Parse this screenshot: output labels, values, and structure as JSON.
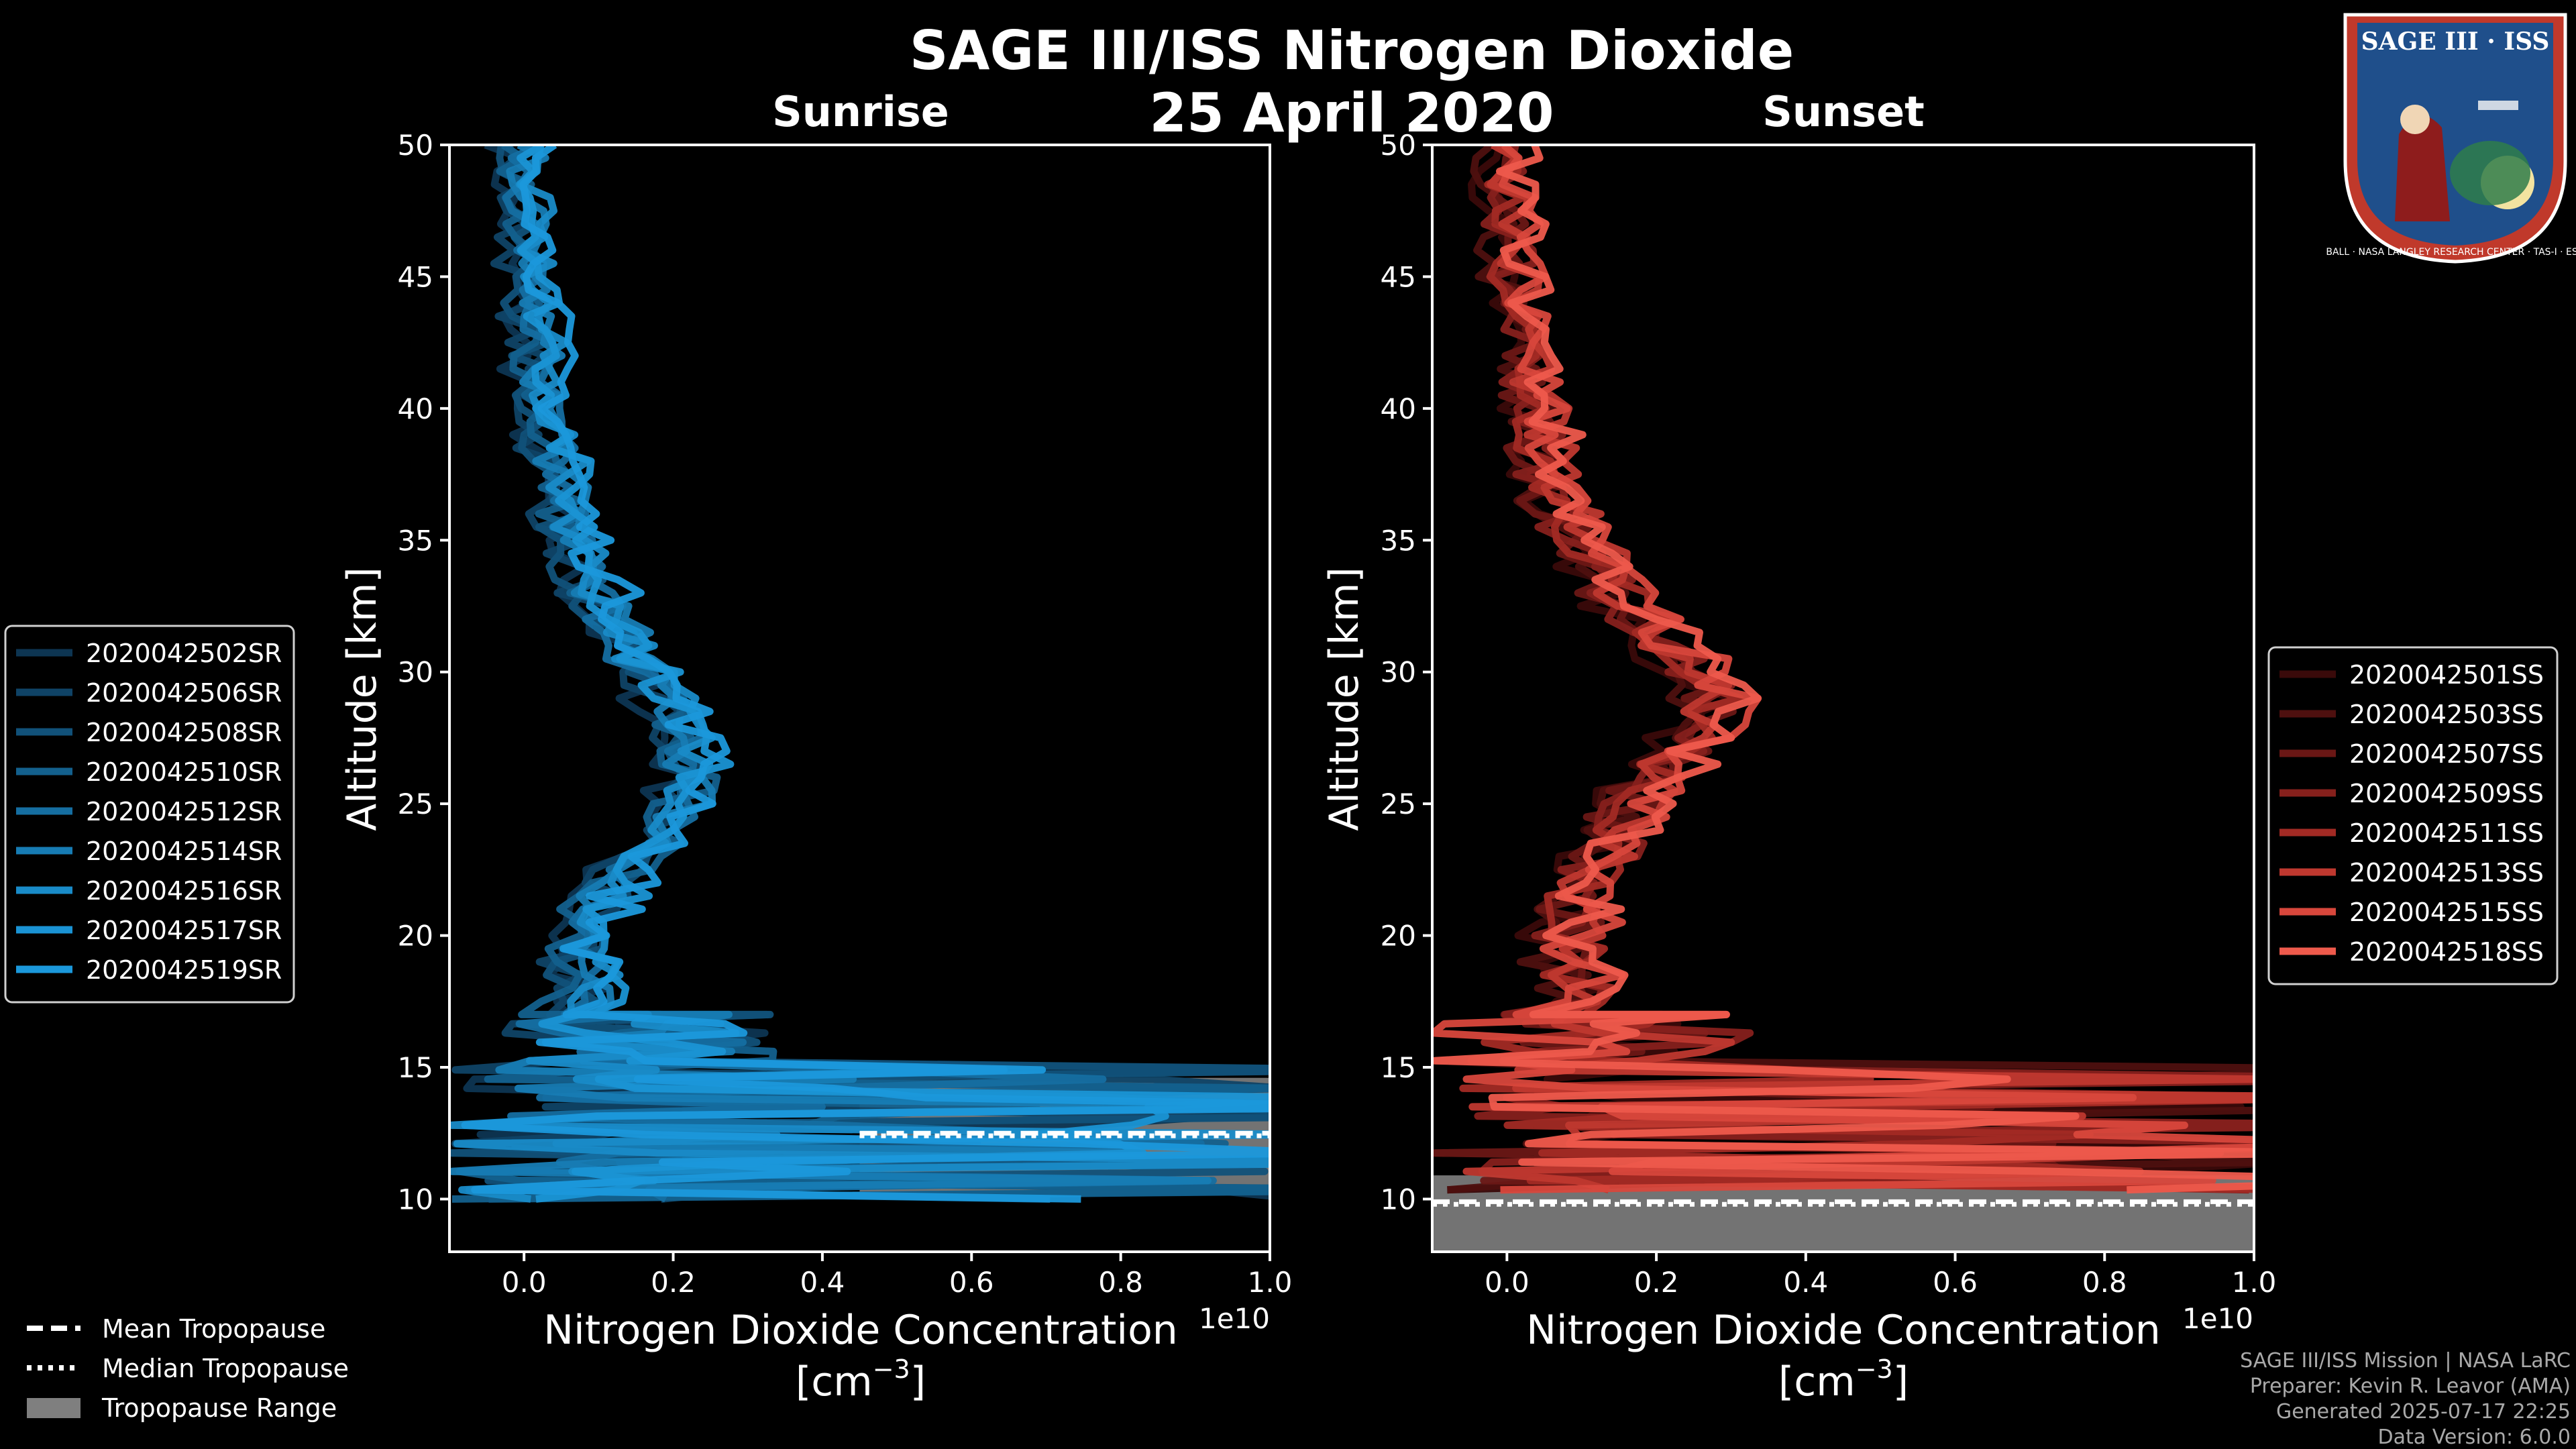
{
  "title": "SAGE III/ISS Nitrogen Dioxide",
  "date": "25 April 2020",
  "credits": [
    "SAGE III/ISS Mission | NASA LaRC",
    "Preparer: Kevin R. Leavor (AMA)",
    "Generated 2025-07-17 22:25",
    "Data Version: 6.0.0"
  ],
  "logo": {
    "header": "SAGE III · ISS",
    "ring_text": "BALL · NASA LANGLEY RESEARCH CENTER · TAS-I · ESA",
    "colors": {
      "ring": "#c0392b",
      "inner": "#1f4f8b",
      "text": "#ffffff"
    }
  },
  "tropopause_legend": [
    {
      "label": "Mean Tropopause",
      "style": "dashed"
    },
    {
      "label": "Median Tropopause",
      "style": "dotted"
    },
    {
      "label": "Tropopause Range",
      "style": "patch"
    }
  ],
  "colors": {
    "sunrise": [
      "#0d3552",
      "#0f4366",
      "#115179",
      "#13608d",
      "#156ea1",
      "#177cb4",
      "#198bc8",
      "#1a93d4",
      "#1b98db"
    ],
    "sunset": [
      "#3a0a0a",
      "#4e100f",
      "#6a1715",
      "#86201c",
      "#a22a24",
      "#bf382f",
      "#d8473c",
      "#ee5a4c"
    ],
    "tropopause_range": "#7f7f7f",
    "axes": "#ffffff"
  },
  "chart_data": [
    {
      "type": "line",
      "panel": "Sunrise",
      "title": "Sunrise",
      "xlabel_line1": "Nitrogen Dioxide Concentration",
      "xlabel_line2": "[cm",
      "xlabel_sup": "−3",
      "xlabel_close": "]",
      "ylabel": "Altitude [km]",
      "offset_label": "1e10",
      "xlim": [
        -0.1,
        1.0
      ],
      "ylim": [
        8,
        50
      ],
      "xticks": [
        "0.0",
        "0.2",
        "0.4",
        "0.6",
        "0.8",
        "1.0"
      ],
      "yticks": [
        "10",
        "15",
        "20",
        "25",
        "30",
        "35",
        "40",
        "45",
        "50"
      ],
      "series": [
        "2020042502SR",
        "2020042506SR",
        "2020042508SR",
        "2020042510SR",
        "2020042512SR",
        "2020042514SR",
        "2020042516SR",
        "2020042517SR",
        "2020042519SR"
      ],
      "profile_altitudes": [
        50,
        47,
        45,
        42,
        40,
        37,
        35,
        33,
        31,
        30,
        29,
        28,
        27,
        26,
        25,
        24,
        23,
        22,
        21,
        20,
        19,
        18,
        17
      ],
      "profile_values": [
        0.0,
        0.005,
        0.01,
        0.02,
        0.03,
        0.05,
        0.07,
        0.1,
        0.14,
        0.16,
        0.19,
        0.21,
        0.22,
        0.23,
        0.22,
        0.2,
        0.16,
        0.12,
        0.1,
        0.08,
        0.07,
        0.1,
        0.05
      ],
      "tropopause": {
        "mean": 12.5,
        "median": 12.4,
        "min": 10.2,
        "max": 14.6
      }
    },
    {
      "type": "line",
      "panel": "Sunset",
      "title": "Sunset",
      "xlabel_line1": "Nitrogen Dioxide Concentration",
      "xlabel_line2": "[cm",
      "xlabel_sup": "−3",
      "xlabel_close": "]",
      "ylabel": "Altitude [km]",
      "offset_label": "1e10",
      "xlim": [
        -0.1,
        1.0
      ],
      "ylim": [
        8,
        50
      ],
      "xticks": [
        "0.0",
        "0.2",
        "0.4",
        "0.6",
        "0.8",
        "1.0"
      ],
      "yticks": [
        "10",
        "15",
        "20",
        "25",
        "30",
        "35",
        "40",
        "45",
        "50"
      ],
      "series": [
        "2020042501SS",
        "2020042503SS",
        "2020042507SS",
        "2020042509SS",
        "2020042511SS",
        "2020042513SS",
        "2020042515SS",
        "2020042518SS"
      ],
      "profile_altitudes": [
        50,
        47,
        45,
        42,
        40,
        37,
        35,
        33,
        31,
        30,
        29,
        28,
        27,
        26,
        25,
        24,
        23,
        22,
        21,
        20,
        19,
        18,
        17
      ],
      "profile_values": [
        0.0,
        0.005,
        0.01,
        0.03,
        0.04,
        0.06,
        0.1,
        0.15,
        0.22,
        0.26,
        0.28,
        0.27,
        0.24,
        0.2,
        0.17,
        0.15,
        0.13,
        0.11,
        0.1,
        0.09,
        0.08,
        0.1,
        0.05
      ],
      "tropopause": {
        "mean": 9.9,
        "median": 9.8,
        "min": 8.0,
        "max": 10.9
      }
    }
  ]
}
